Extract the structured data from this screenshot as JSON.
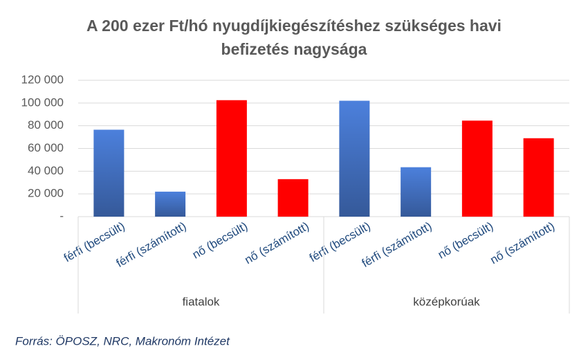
{
  "chart_data": {
    "type": "bar",
    "title": "A 200 ezer Ft/hó nyugdíjkiegészítéshez szükséges havi befizetés nagysága",
    "categories": [
      "férfi (becsült)",
      "férfi (számított)",
      "nő (becsült)",
      "nő (számított)",
      "férfi (becsült)",
      "férfi (számított)",
      "nő (becsült)",
      "nő (számított)"
    ],
    "groups": [
      "fiatalok",
      "középkorúak"
    ],
    "values": [
      76500,
      22000,
      102500,
      33000,
      102000,
      43500,
      84500,
      69000
    ],
    "colors": [
      "#4472c4",
      "#4472c4",
      "#ff0000",
      "#ff0000",
      "#4472c4",
      "#4472c4",
      "#ff0000",
      "#ff0000"
    ],
    "ylim": [
      0,
      120000
    ],
    "yticks": [
      {
        "value": 0,
        "label": "-"
      },
      {
        "value": 20000,
        "label": "20 000"
      },
      {
        "value": 40000,
        "label": "40 000"
      },
      {
        "value": 60000,
        "label": "60 000"
      },
      {
        "value": 80000,
        "label": "80 000"
      },
      {
        "value": 100000,
        "label": "100 000"
      },
      {
        "value": 120000,
        "label": "120 000"
      }
    ],
    "grid": true,
    "source": "Forrás: ÖPOSZ, NRC, Makronóm Intézet"
  }
}
